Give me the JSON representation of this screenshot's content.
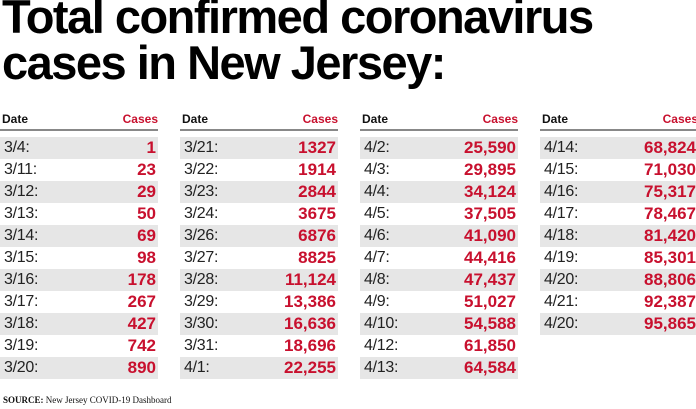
{
  "title_line1": "Total confirmed coronavirus",
  "title_line2": "cases in New Jersey:",
  "header": {
    "date": "Date",
    "cases": "Cases"
  },
  "source_label": "SOURCE:",
  "source_text": "New Jersey COVID-19 Dashboard",
  "colors": {
    "accent": "#c8102e",
    "row_shade": "#e6e6e6"
  },
  "chart_data": {
    "type": "table",
    "title": "Total confirmed coronavirus cases in New Jersey:",
    "columns": [
      "Date",
      "Cases"
    ],
    "rows": [
      [
        "3/4:",
        "1"
      ],
      [
        "3/11:",
        "23"
      ],
      [
        "3/12:",
        "29"
      ],
      [
        "3/13:",
        "50"
      ],
      [
        "3/14:",
        "69"
      ],
      [
        "3/15:",
        "98"
      ],
      [
        "3/16:",
        "178"
      ],
      [
        "3/17:",
        "267"
      ],
      [
        "3/18:",
        "427"
      ],
      [
        "3/19:",
        "742"
      ],
      [
        "3/20:",
        "890"
      ],
      [
        "3/21:",
        "1327"
      ],
      [
        "3/22:",
        "1914"
      ],
      [
        "3/23:",
        "2844"
      ],
      [
        "3/24:",
        "3675"
      ],
      [
        "3/26:",
        "6876"
      ],
      [
        "3/27:",
        "8825"
      ],
      [
        "3/28:",
        "11,124"
      ],
      [
        "3/29:",
        "13,386"
      ],
      [
        "3/30:",
        "16,636"
      ],
      [
        "3/31:",
        "18,696"
      ],
      [
        "4/1:",
        "22,255"
      ],
      [
        "4/2:",
        "25,590"
      ],
      [
        "4/3:",
        "29,895"
      ],
      [
        "4/4:",
        "34,124"
      ],
      [
        "4/5:",
        "37,505"
      ],
      [
        "4/6:",
        "41,090"
      ],
      [
        "4/7:",
        "44,416"
      ],
      [
        "4/8:",
        "47,437"
      ],
      [
        "4/9:",
        "51,027"
      ],
      [
        "4/10:",
        "54,588"
      ],
      [
        "4/12:",
        "61,850"
      ],
      [
        "4/13:",
        "64,584"
      ],
      [
        "4/14:",
        "68,824"
      ],
      [
        "4/15:",
        "71,030"
      ],
      [
        "4/16:",
        "75,317"
      ],
      [
        "4/17:",
        "78,467"
      ],
      [
        "4/18:",
        "81,420"
      ],
      [
        "4/19:",
        "85,301"
      ],
      [
        "4/20:",
        "88,806"
      ],
      [
        "4/21:",
        "92,387"
      ],
      [
        "4/20:",
        "95,865"
      ]
    ],
    "column_groups": [
      11,
      11,
      11,
      9
    ]
  }
}
